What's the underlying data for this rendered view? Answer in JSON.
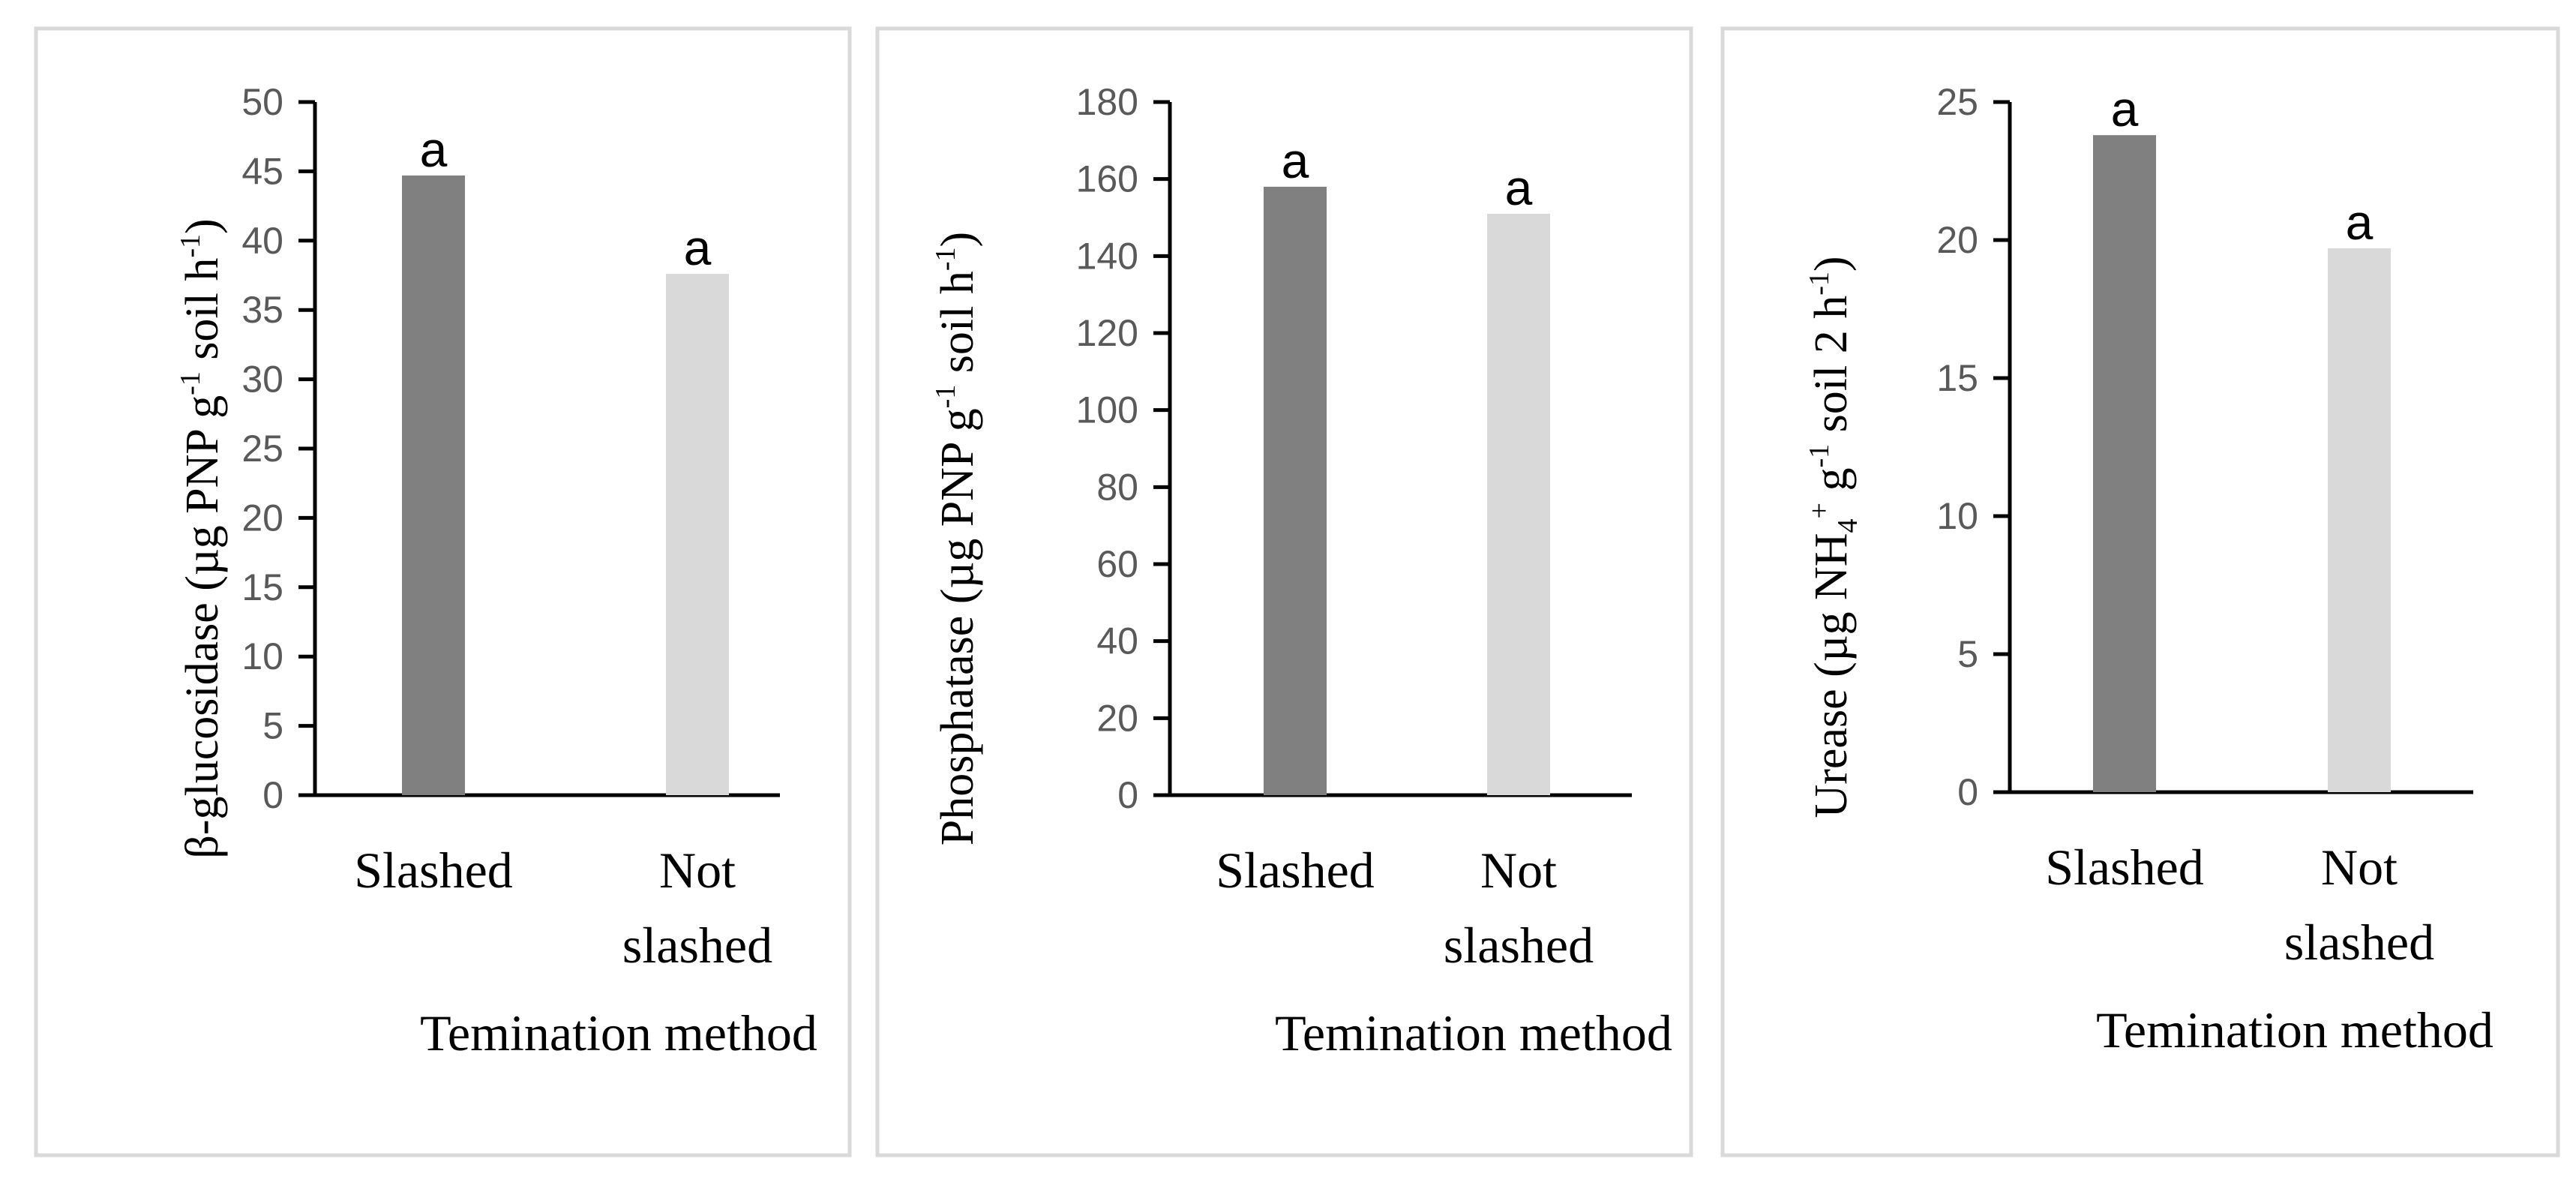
{
  "colors": {
    "slashed": "#808080",
    "not_slashed": "#d9d9d9"
  },
  "chart_data": [
    {
      "type": "bar",
      "categories": [
        [
          "Slashed"
        ],
        [
          "Not",
          "slashed"
        ]
      ],
      "values": [
        44.7,
        37.6
      ],
      "letters": [
        "a",
        "a"
      ],
      "ylim": [
        0,
        50
      ],
      "yticks": [
        "0",
        "5",
        "10",
        "15",
        "20",
        "25",
        "30",
        "35",
        "40",
        "45",
        "50"
      ],
      "xlabel": "Temination method",
      "ylabel_parts": [
        {
          "t": "β-glucosidase (µg PNP g"
        },
        {
          "t": "-1",
          "sup": true
        },
        {
          "t": " soil h"
        },
        {
          "t": "-1",
          "sup": true
        },
        {
          "t": ")"
        }
      ]
    },
    {
      "type": "bar",
      "categories": [
        [
          "Slashed"
        ],
        [
          "Not",
          "slashed"
        ]
      ],
      "values": [
        158,
        151
      ],
      "letters": [
        "a",
        "a"
      ],
      "ylim": [
        0,
        180
      ],
      "yticks": [
        "0",
        "20",
        "40",
        "60",
        "80",
        "100",
        "120",
        "140",
        "160",
        "180"
      ],
      "xlabel": "Temination method",
      "ylabel_parts": [
        {
          "t": "Phosphatase (µg PNP g"
        },
        {
          "t": "-1",
          "sup": true
        },
        {
          "t": " soil h"
        },
        {
          "t": "-1",
          "sup": true
        },
        {
          "t": ")"
        }
      ]
    },
    {
      "type": "bar",
      "categories": [
        [
          "Slashed"
        ],
        [
          "Not",
          "slashed"
        ]
      ],
      "values": [
        23.8,
        19.7
      ],
      "letters": [
        "a",
        "a"
      ],
      "ylim": [
        0,
        25
      ],
      "yticks": [
        "0",
        "5",
        "10",
        "15",
        "20",
        "25"
      ],
      "xlabel": "Temination method",
      "ylabel_parts": [
        {
          "t": "Urease (µg NH"
        },
        {
          "t": "4",
          "sub": true
        },
        {
          "t": "+",
          "sup": true
        },
        {
          "t": " g"
        },
        {
          "t": "-1",
          "sup": true
        },
        {
          "t": " soil 2 h"
        },
        {
          "t": "-1",
          "sup": true
        },
        {
          "t": ")"
        }
      ]
    }
  ]
}
